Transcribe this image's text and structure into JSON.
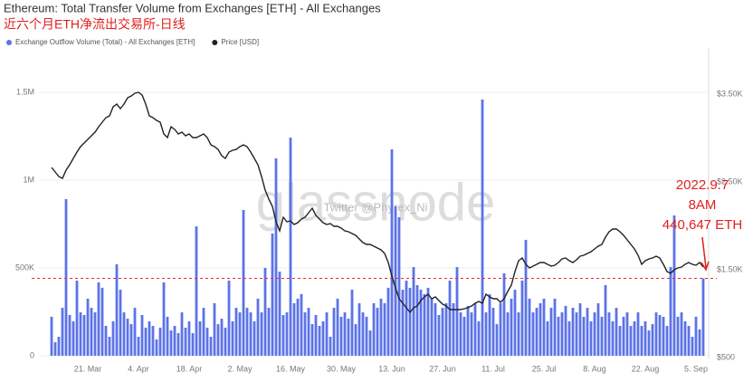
{
  "chart_data": {
    "type": "bar",
    "title": "Ethereum: Total Transfer Volume from Exchanges [ETH] - All Exchanges",
    "subtitle": "近六个月ETH净流出交易所-日线",
    "categories": [
      null,
      null,
      null,
      null,
      null,
      null,
      null,
      null,
      null,
      null,
      "21. Mar",
      null,
      null,
      null,
      null,
      null,
      null,
      null,
      null,
      null,
      null,
      null,
      null,
      null,
      "4. Apr",
      null,
      null,
      null,
      null,
      null,
      null,
      null,
      null,
      null,
      null,
      null,
      null,
      null,
      "18. Apr",
      null,
      null,
      null,
      null,
      null,
      null,
      null,
      null,
      null,
      null,
      null,
      null,
      null,
      "2. May",
      null,
      null,
      null,
      null,
      null,
      null,
      null,
      null,
      null,
      null,
      null,
      null,
      null,
      "16. May",
      null,
      null,
      null,
      null,
      null,
      null,
      null,
      null,
      null,
      null,
      null,
      null,
      null,
      "30. May",
      null,
      null,
      null,
      null,
      null,
      null,
      null,
      null,
      null,
      null,
      null,
      null,
      null,
      "13. Jun",
      null,
      null,
      null,
      null,
      null,
      null,
      null,
      null,
      null,
      null,
      null,
      null,
      null,
      "27. Jun",
      null,
      null,
      null,
      null,
      null,
      null,
      null,
      null,
      null,
      null,
      null,
      null,
      null,
      "11. Jul",
      null,
      null,
      null,
      null,
      null,
      null,
      null,
      null,
      null,
      null,
      null,
      null,
      null,
      "25. Jul",
      null,
      null,
      null,
      null,
      null,
      null,
      null,
      null,
      null,
      null,
      null,
      null,
      null,
      "8. Aug",
      null,
      null,
      null,
      null,
      null,
      null,
      null,
      null,
      null,
      null,
      null,
      null,
      null,
      "22. Aug",
      null,
      null,
      null,
      null,
      null,
      null,
      null,
      null,
      null,
      null,
      null,
      null,
      null,
      "5. Sep",
      null,
      null
    ],
    "series": [
      {
        "name": "Exchange Outflow Volume (Total) - All Exchanges [ETH]",
        "type": "bar",
        "color": "#5b73e8",
        "values": [
          222000,
          77000,
          108000,
          273000,
          892000,
          232000,
          196000,
          428000,
          247000,
          232000,
          325000,
          273000,
          247000,
          418000,
          387000,
          170000,
          108000,
          196000,
          521000,
          376000,
          247000,
          211000,
          180000,
          273000,
          108000,
          232000,
          160000,
          196000,
          170000,
          93000,
          160000,
          418000,
          222000,
          144000,
          170000,
          129000,
          247000,
          160000,
          196000,
          129000,
          737000,
          196000,
          273000,
          160000,
          108000,
          299000,
          180000,
          211000,
          160000,
          428000,
          196000,
          273000,
          247000,
          830000,
          273000,
          247000,
          196000,
          325000,
          247000,
          500000,
          273000,
          696000,
          1124000,
          479000,
          232000,
          247000,
          1242000,
          299000,
          325000,
          351000,
          247000,
          273000,
          180000,
          232000,
          170000,
          196000,
          247000,
          108000,
          273000,
          325000,
          222000,
          247000,
          211000,
          376000,
          180000,
          299000,
          247000,
          222000,
          144000,
          299000,
          273000,
          325000,
          299000,
          387000,
          1175000,
          851000,
          789000,
          376000,
          428000,
          387000,
          505000,
          402000,
          376000,
          351000,
          387000,
          325000,
          299000,
          232000,
          273000,
          299000,
          428000,
          299000,
          505000,
          247000,
          222000,
          284000,
          247000,
          299000,
          196000,
          1459000,
          247000,
          351000,
          273000,
          180000,
          299000,
          469000,
          247000,
          325000,
          376000,
          247000,
          428000,
          660000,
          325000,
          247000,
          273000,
          299000,
          325000,
          196000,
          273000,
          325000,
          222000,
          247000,
          284000,
          196000,
          273000,
          247000,
          299000,
          222000,
          273000,
          196000,
          247000,
          299000,
          222000,
          402000,
          247000,
          196000,
          273000,
          170000,
          222000,
          247000,
          170000,
          196000,
          247000,
          170000,
          196000,
          144000,
          180000,
          247000,
          232000,
          222000,
          170000,
          505000,
          799000,
          222000,
          247000,
          196000,
          170000,
          108000,
          222000,
          150000,
          440647
        ]
      },
      {
        "name": "Price [USD]",
        "type": "line",
        "axis": "y2",
        "color": "#222222",
        "values": [
          2644,
          2593,
          2541,
          2521,
          2613,
          2675,
          2747,
          2820,
          2881,
          2923,
          2964,
          3005,
          3046,
          3108,
          3160,
          3211,
          3232,
          3335,
          3366,
          3314,
          3366,
          3438,
          3459,
          3490,
          3500,
          3469,
          3366,
          3232,
          3211,
          3180,
          3160,
          3026,
          2985,
          3108,
          3077,
          3026,
          3046,
          3005,
          3026,
          2985,
          2985,
          3005,
          3026,
          2985,
          2902,
          2881,
          2850,
          2778,
          2747,
          2820,
          2840,
          2850,
          2881,
          2902,
          2881,
          2820,
          2747,
          2675,
          2541,
          2387,
          2283,
          2201,
          2026,
          1923,
          2077,
          2026,
          2036,
          1995,
          2015,
          2057,
          2077,
          2129,
          2180,
          2098,
          2057,
          2015,
          1995,
          2005,
          1974,
          1974,
          1954,
          1923,
          1912,
          1892,
          1871,
          1830,
          1789,
          1768,
          1768,
          1747,
          1727,
          1706,
          1665,
          1562,
          1407,
          1273,
          1149,
          1098,
          1046,
          995,
          1046,
          1067,
          1129,
          1170,
          1201,
          1149,
          1170,
          1129,
          1088,
          1067,
          1026,
          1026,
          1026,
          1026,
          1036,
          1046,
          1067,
          1098,
          1119,
          1098,
          1201,
          1170,
          1149,
          1149,
          1108,
          1149,
          1232,
          1304,
          1459,
          1582,
          1613,
          1541,
          1500,
          1521,
          1541,
          1562,
          1562,
          1541,
          1521,
          1531,
          1562,
          1603,
          1613,
          1582,
          1562,
          1593,
          1634,
          1644,
          1665,
          1685,
          1716,
          1747,
          1768,
          1850,
          1912,
          1943,
          1943,
          1912,
          1871,
          1820,
          1768,
          1716,
          1644,
          1541,
          1582,
          1603,
          1613,
          1634,
          1613,
          1541,
          1459,
          1438,
          1479,
          1500,
          1510,
          1541,
          1562,
          1541,
          1531,
          1562,
          1510
        ]
      }
    ],
    "ylim": [
      0,
      1750000
    ],
    "yticks": [
      0,
      {
        "value": 500000,
        "label": "500K"
      },
      {
        "value": 1000000,
        "label": "1M"
      },
      {
        "value": 1500000,
        "label": "1.5M"
      }
    ],
    "y2lim": [
      500,
      4000
    ],
    "y2ticks": [
      {
        "value": 500,
        "label": "$500"
      },
      {
        "value": 1500,
        "label": "$1.50K"
      },
      {
        "value": 2500,
        "label": "$2.50K"
      },
      {
        "value": 3500,
        "label": "$3.50K"
      }
    ],
    "grid": true,
    "reference_line": {
      "value": 440647,
      "color": "#e03030"
    },
    "annotation": [
      "2022.9.7",
      "8AM",
      "440,647 ETH"
    ],
    "watermark": [
      "glassnode",
      "Twitter @Phyrex_Ni"
    ]
  }
}
